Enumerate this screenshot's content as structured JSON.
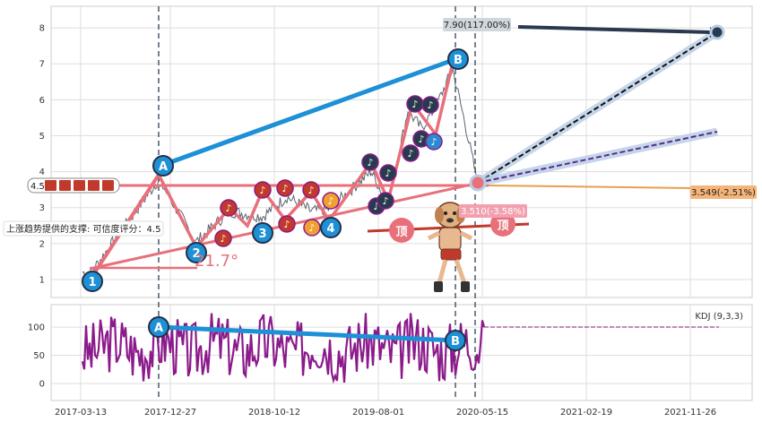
{
  "chart_data": [
    {
      "type": "line",
      "panel": "price",
      "ylim": [
        0.5,
        8.6
      ],
      "yticks": [
        "1",
        "2",
        "3",
        "4",
        "5",
        "6",
        "7",
        "8"
      ],
      "xticks": [
        "2017-03-13",
        "2017-12-27",
        "2018-10-12",
        "2019-08-01",
        "2020-05-15",
        "2021-02-19",
        "2021-11-26"
      ],
      "wave_points": [
        {
          "label": "1",
          "x": "2017-05-15",
          "y": 1.15
        },
        {
          "label": "A",
          "x": "2017-12-27",
          "y": 3.78
        },
        {
          "label": "2",
          "x": "2018-03-20",
          "y": 2.05
        },
        {
          "label": "3",
          "x": "2018-12-10",
          "y": 2.75
        },
        {
          "label": "4",
          "x": "2019-06-20",
          "y": 2.95
        },
        {
          "label": "B",
          "x": "2020-02-05",
          "y": 6.8
        }
      ],
      "annotations": {
        "target_label": "7.90(117.00%)",
        "current_label": "3.549(-2.51%)",
        "support_label": "3.510(-3.58%)",
        "level_label": "4.5",
        "support_note": "上涨趋势提供的支撑: 可信度评分：4.5",
        "angle_label": "21.7°",
        "top_marker_1": "顶",
        "top_marker_2": "顶"
      },
      "series_colors": {
        "price": "#5a6470",
        "trend_up": "#1e90d6",
        "support": "#e8707a",
        "target": "#2a3a4e"
      }
    },
    {
      "type": "line",
      "panel": "indicator",
      "title": "KDJ (9,3,3)",
      "ylim": [
        -30,
        140
      ],
      "yticks": [
        "0",
        "50",
        "100"
      ],
      "wave_points": [
        {
          "label": "A",
          "x": "2017-12-27",
          "y": 100
        },
        {
          "label": "B",
          "x": "2020-02-05",
          "y": 75
        }
      ],
      "series_colors": {
        "kdj": "#8b1a8b",
        "trend": "#1e90d6"
      }
    }
  ]
}
